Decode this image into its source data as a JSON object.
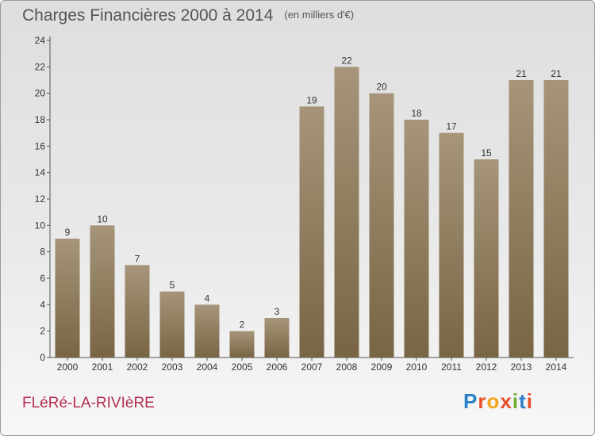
{
  "header": {
    "title": "Charges Financières 2000 à 2014",
    "unit": "(en milliers d'€)"
  },
  "footer": {
    "commune": "FLéRé-LA-RIVIèRE",
    "logo": "Proxiti"
  },
  "colors": {
    "bar_top": "#a6957a",
    "bar_bottom": "#786544",
    "commune_text": "#b32d4f",
    "logo_letters": [
      "#2a7fc9",
      "#e8502a",
      "#f2a51a",
      "#e8502a",
      "#6cae2c",
      "#2a7fc9",
      "#e8502a"
    ]
  },
  "chart_data": {
    "type": "bar",
    "categories": [
      "2000",
      "2001",
      "2002",
      "2003",
      "2004",
      "2005",
      "2006",
      "2007",
      "2008",
      "2009",
      "2010",
      "2011",
      "2012",
      "2013",
      "2014"
    ],
    "values": [
      9,
      10,
      7,
      5,
      4,
      2,
      3,
      19,
      22,
      20,
      18,
      17,
      15,
      21,
      21
    ],
    "ylim": [
      0,
      24
    ],
    "yticks": [
      0,
      2,
      4,
      6,
      8,
      10,
      12,
      14,
      16,
      18,
      20,
      22,
      24
    ],
    "grid": false,
    "data_labels": true
  }
}
